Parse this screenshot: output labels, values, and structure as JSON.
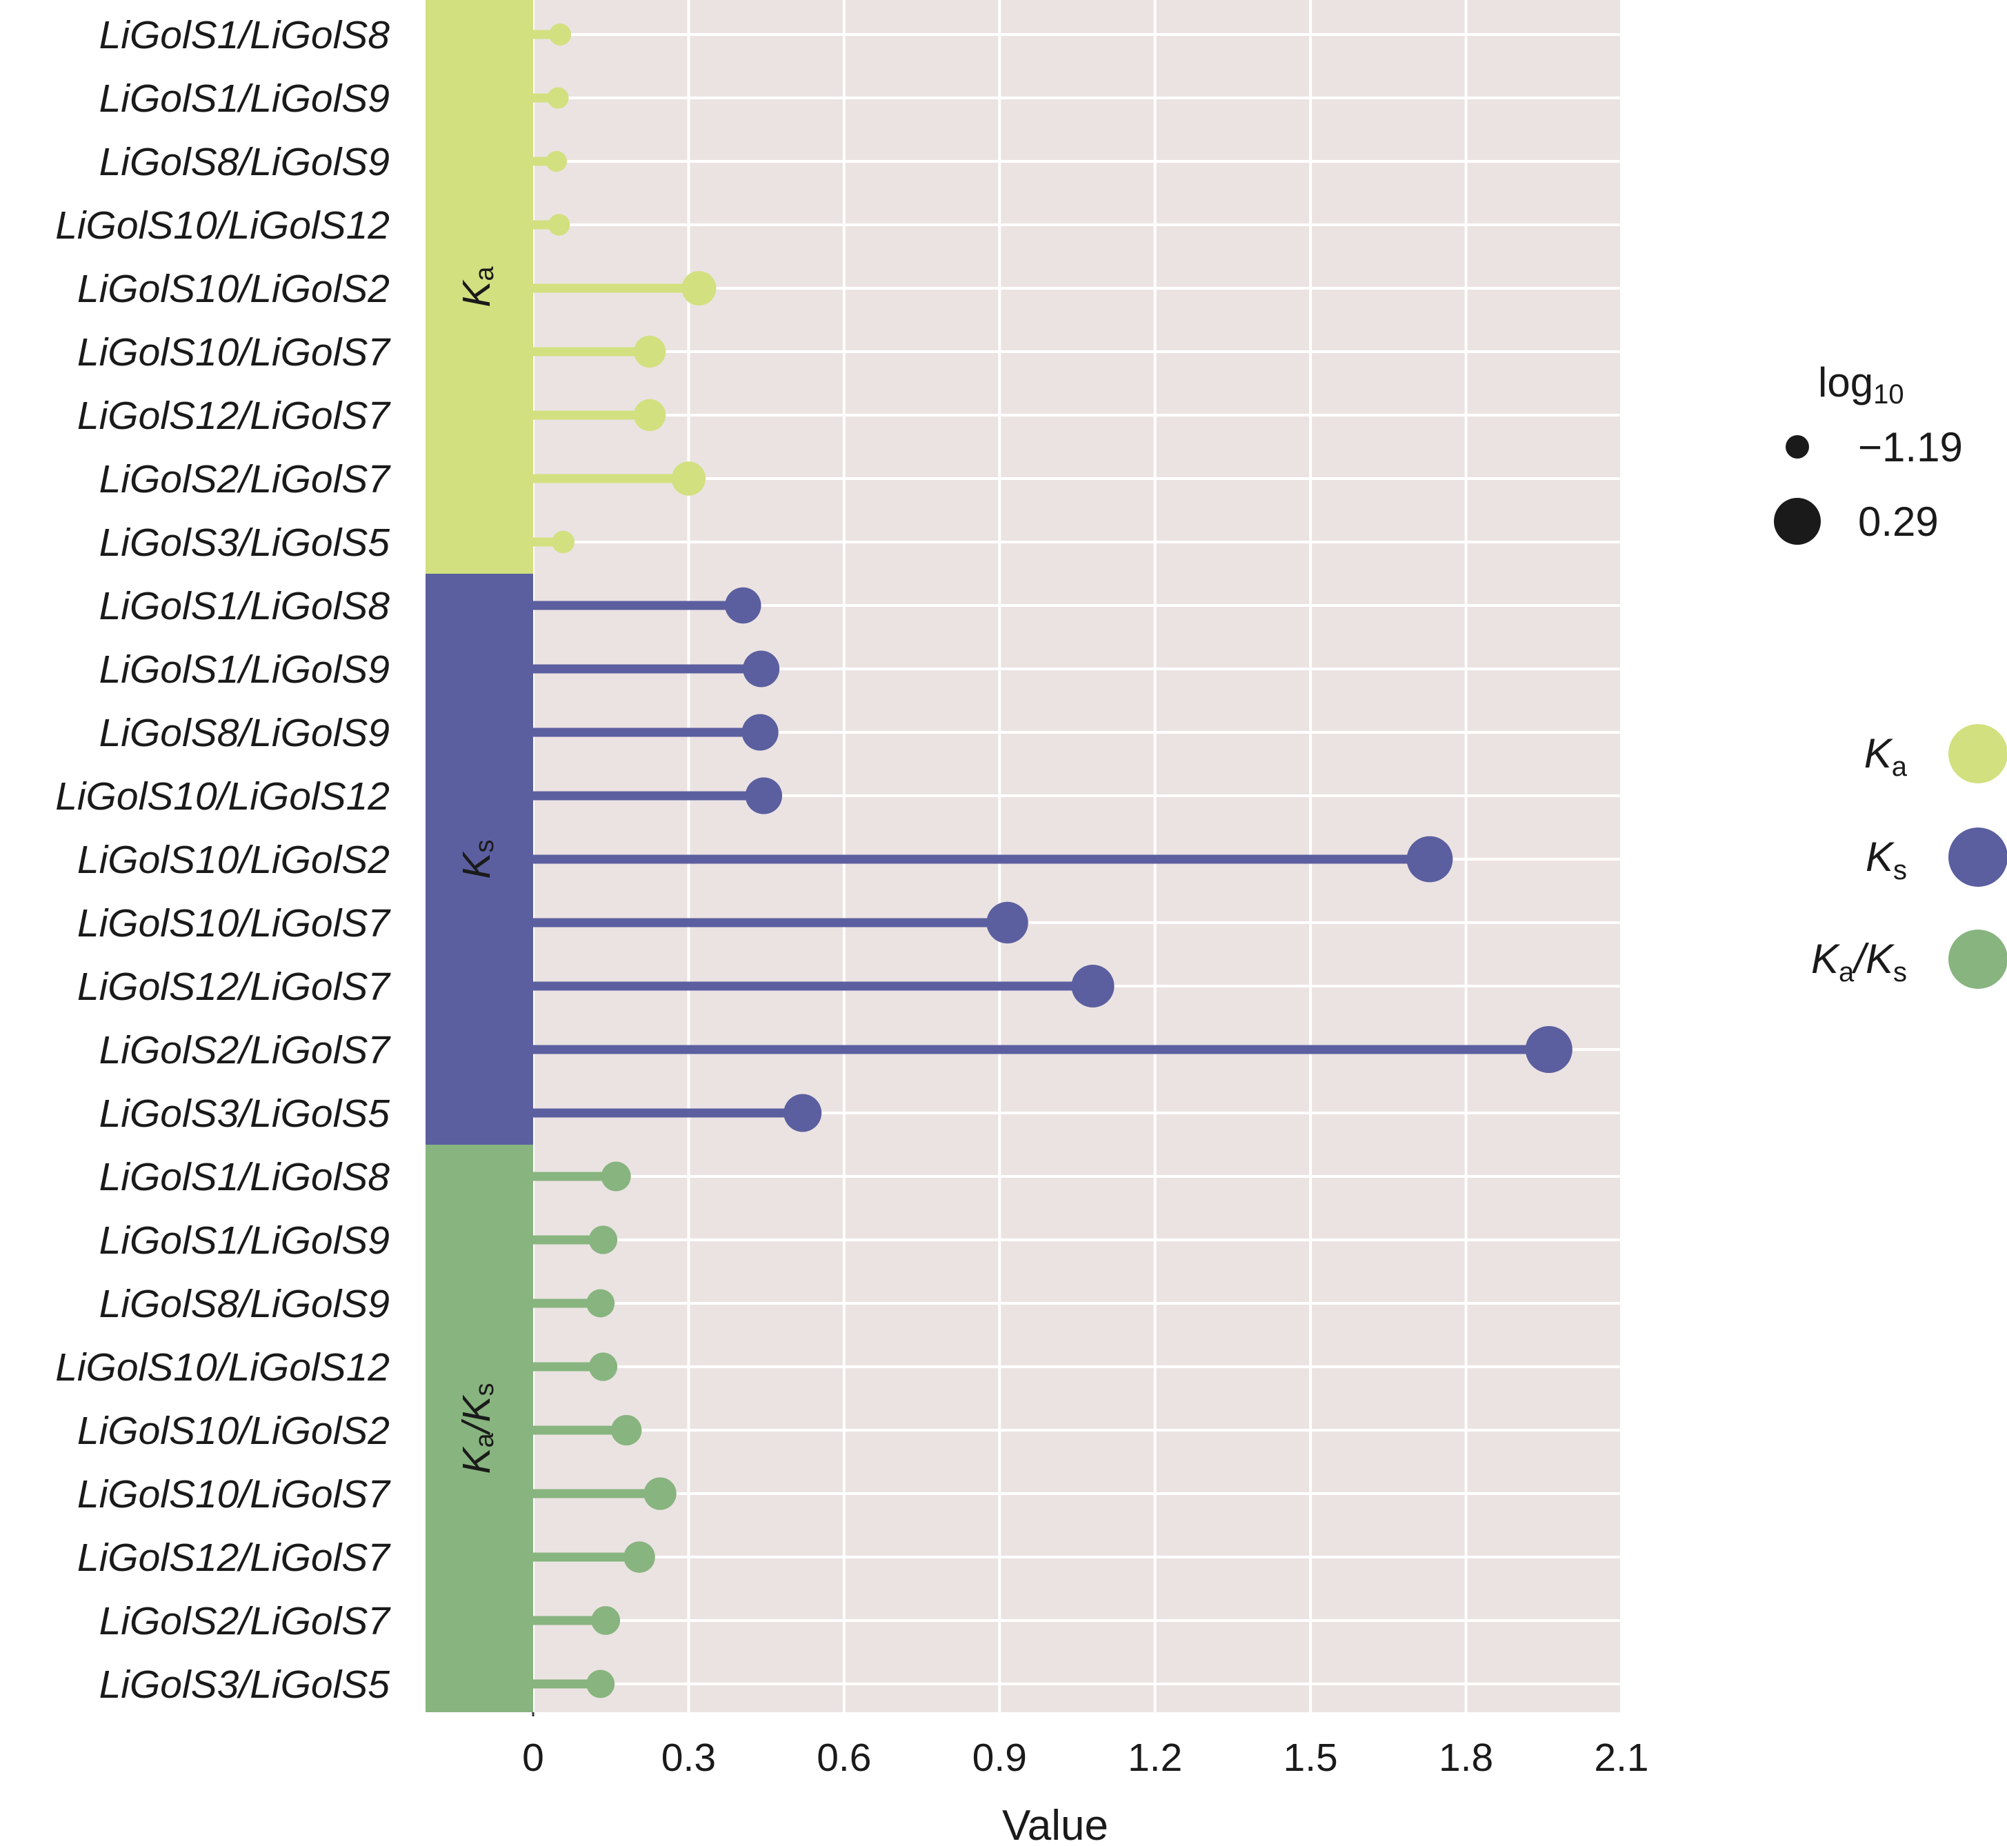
{
  "chart_data": {
    "type": "lollipop",
    "xlabel": "Value",
    "xlim": [
      0,
      2.1
    ],
    "xticks": [
      0,
      0.3,
      0.6,
      0.9,
      1.2,
      1.5,
      1.8,
      2.1
    ],
    "xtick_labels": [
      "0",
      "0.3",
      "0.6",
      "0.9",
      "1.2",
      "1.5",
      "1.8",
      "2.1"
    ],
    "grid": true,
    "legend_position": "right",
    "size_legend": {
      "title": "log",
      "title_sub": "10",
      "entries": [
        {
          "label": "−1.19",
          "value": -1.19
        },
        {
          "label": "0.29",
          "value": 0.29
        }
      ]
    },
    "color_legend": [
      {
        "key": "Ka",
        "label": "K",
        "sub": "a",
        "color": "#d2e07f"
      },
      {
        "key": "Ks",
        "label": "K",
        "sub": "s",
        "color": "#5b5f9f"
      },
      {
        "key": "KaKs",
        "label": "K",
        "sub": "a",
        "mid": "/K",
        "sub2": "s",
        "color": "#88b47f"
      }
    ],
    "categories": [
      "LiGolS1/LiGolS8",
      "LiGolS1/LiGolS9",
      "LiGolS8/LiGolS9",
      "LiGolS10/LiGolS12",
      "LiGolS10/LiGolS2",
      "LiGolS10/LiGolS7",
      "LiGolS12/LiGolS7",
      "LiGolS2/LiGolS7",
      "LiGolS3/LiGolS5"
    ],
    "series": [
      {
        "name": "Ka",
        "group_label": "K",
        "group_sub": "a",
        "color": "#d2e07f",
        "values": [
          0.052,
          0.048,
          0.045,
          0.05,
          0.32,
          0.225,
          0.225,
          0.3,
          0.058
        ],
        "log10": [
          -1.28,
          -1.32,
          -1.35,
          -1.3,
          -0.49,
          -0.65,
          -0.65,
          -0.52,
          -1.24
        ]
      },
      {
        "name": "Ks",
        "group_label": "K",
        "group_sub": "s",
        "color": "#5b5f9f",
        "values": [
          0.405,
          0.44,
          0.438,
          0.445,
          1.73,
          0.915,
          1.08,
          1.96,
          0.52
        ],
        "log10": [
          -0.39,
          -0.36,
          -0.36,
          -0.35,
          0.24,
          -0.04,
          0.03,
          0.29,
          -0.28
        ]
      },
      {
        "name": "Ka/Ks",
        "group_label": "K",
        "group_sub": "a",
        "group_mid": "/K",
        "group_sub2": "s",
        "color": "#88b47f",
        "values": [
          0.16,
          0.135,
          0.13,
          0.135,
          0.18,
          0.245,
          0.205,
          0.14,
          0.13
        ],
        "log10": [
          -0.8,
          -0.87,
          -0.89,
          -0.87,
          -0.74,
          -0.61,
          -0.69,
          -0.85,
          -0.89
        ]
      }
    ]
  }
}
